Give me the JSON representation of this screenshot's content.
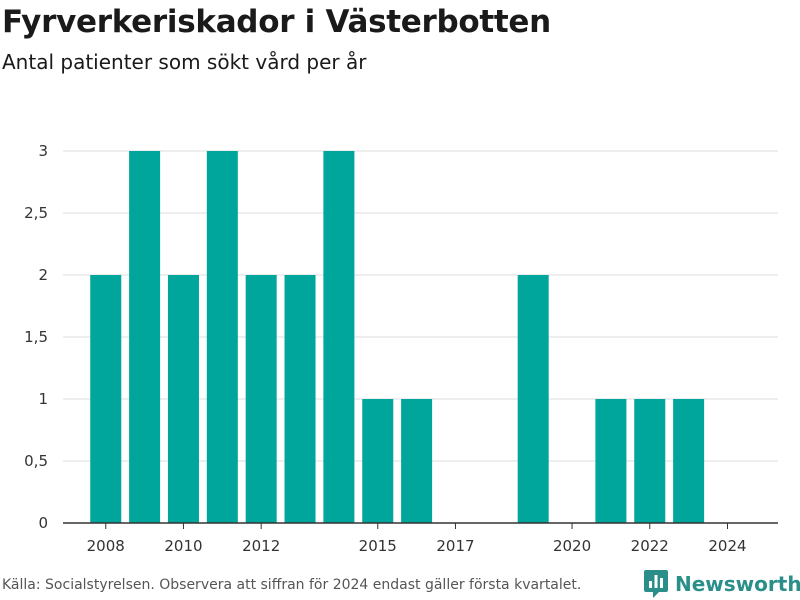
{
  "header": {
    "title": "Fyrverkeriskador i Västerbotten",
    "subtitle": "Antal patienter som sökt vård per år"
  },
  "footer": {
    "source": "Källa: Socialstyrelsen. Observera att siffran för 2024 endast gäller första kvartalet.",
    "brand": "Newsworthy",
    "brand_icon": "bar-chart-logo-icon"
  },
  "colors": {
    "bar": "#00a59b",
    "grid": "#dddddd",
    "axis": "#333333",
    "brand": "#2a8f8a"
  },
  "chart_data": {
    "type": "bar",
    "title": "Fyrverkeriskador i Västerbotten",
    "subtitle": "Antal patienter som sökt vård per år",
    "x": [
      2008,
      2009,
      2010,
      2011,
      2012,
      2013,
      2014,
      2015,
      2016,
      2017,
      2018,
      2019,
      2020,
      2021,
      2022,
      2023,
      2024
    ],
    "values": [
      2,
      3,
      2,
      3,
      2,
      2,
      3,
      1,
      1,
      0,
      0,
      2,
      0,
      1,
      1,
      1,
      0
    ],
    "x_tick_labels": [
      "2008",
      "2010",
      "2012",
      "2015",
      "2017",
      "2020",
      "2022",
      "2024"
    ],
    "y_ticks": [
      0,
      0.5,
      1,
      1.5,
      2,
      2.5,
      3
    ],
    "y_tick_labels": [
      "0",
      "0,5",
      "1",
      "1,5",
      "2",
      "2,5",
      "3"
    ],
    "ylim": [
      0,
      3
    ],
    "xlim": [
      2006.9,
      2025.3
    ],
    "xlabel": "",
    "ylabel": "",
    "grid": true,
    "legend": "none"
  }
}
